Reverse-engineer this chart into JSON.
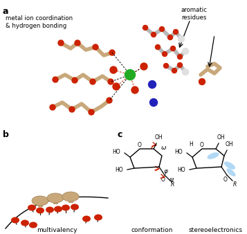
{
  "fig_width": 3.57,
  "fig_height": 3.38,
  "dpi": 100,
  "bg_color": "#ffffff",
  "panel_a_label": "a",
  "panel_b_label": "b",
  "panel_c_label": "c",
  "text_metal": "metal ion coordination\n& hydrogen bonding",
  "text_aromatic": "aromatic\nresidues",
  "caption_b": "multivalency",
  "caption_c_left": "conformation",
  "caption_c_right": "stereoelectronics",
  "colors": {
    "red": "#cc2200",
    "green": "#22aa22",
    "tan": "#c8a87a",
    "tan_dark": "#a08050",
    "gray": "#b8b8b8",
    "gray_dark": "#888888",
    "blue_atom": "#2222bb",
    "light_blue": "#90c8f0",
    "black": "#000000",
    "white": "#ffffff",
    "red_dark": "#aa1100"
  }
}
